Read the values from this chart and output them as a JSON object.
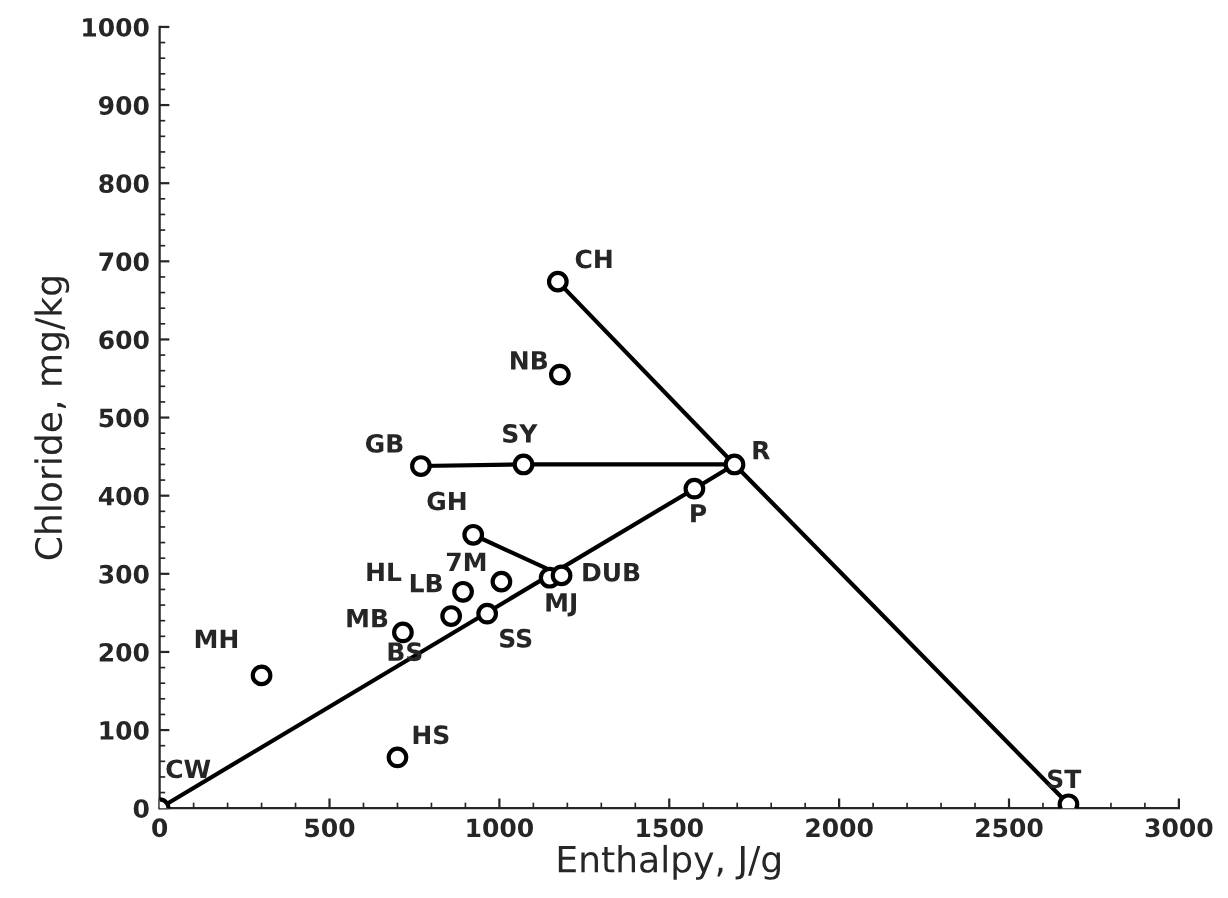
{
  "chart_data": {
    "type": "scatter",
    "xlabel": "Enthalpy, J/g",
    "ylabel": "Chloride, mg/kg",
    "xlim": [
      0,
      3000
    ],
    "ylim": [
      0,
      1000
    ],
    "xticks": [
      0,
      500,
      1000,
      1500,
      2000,
      2500,
      3000
    ],
    "yticks": [
      0,
      100,
      200,
      300,
      400,
      500,
      600,
      700,
      800,
      900,
      1000
    ],
    "grid": false,
    "series": [
      {
        "type": "line",
        "color": "#000000",
        "x": [
          0,
          1574,
          1692
        ],
        "values": [
          0,
          409,
          440
        ]
      },
      {
        "type": "line",
        "color": "#000000",
        "x": [
          1172,
          1692,
          2675
        ],
        "values": [
          674,
          440,
          5
        ]
      },
      {
        "type": "line",
        "color": "#000000",
        "x": [
          1692,
          1071,
          769
        ],
        "values": [
          440,
          440,
          438
        ]
      },
      {
        "type": "line",
        "color": "#000000",
        "x": [
          923,
          1183
        ],
        "values": [
          350,
          298
        ]
      },
      {
        "color": "#000000",
        "marker": "circle",
        "x": [
          0,
          300,
          700,
          716,
          893,
          858,
          1006,
          964,
          923,
          1148,
          1183,
          1574,
          1692,
          1071,
          769,
          1172,
          1178,
          2675
        ],
        "values": [
          0,
          170,
          65,
          225,
          277,
          246,
          290,
          249,
          350,
          295,
          298,
          409,
          440,
          440,
          438,
          674,
          555,
          5
        ]
      }
    ],
    "annotations": [
      {
        "text": "CW",
        "x": 0,
        "y": 0
      },
      {
        "text": "MH",
        "x": 300,
        "y": 170
      },
      {
        "text": "HS",
        "x": 700,
        "y": 65
      },
      {
        "text": "MB",
        "x": 716,
        "y": 225
      },
      {
        "text": "HL",
        "x": 893,
        "y": 277
      },
      {
        "text": "LB",
        "x": 893,
        "y": 277
      },
      {
        "text": "BS",
        "x": 858,
        "y": 246
      },
      {
        "text": "7M",
        "x": 1006,
        "y": 290
      },
      {
        "text": "SS",
        "x": 964,
        "y": 249
      },
      {
        "text": "GH",
        "x": 923,
        "y": 350
      },
      {
        "text": "MJ",
        "x": 1148,
        "y": 295
      },
      {
        "text": "DUB",
        "x": 1183,
        "y": 298
      },
      {
        "text": "P",
        "x": 1574,
        "y": 409
      },
      {
        "text": "R",
        "x": 1692,
        "y": 440
      },
      {
        "text": "SY",
        "x": 1071,
        "y": 440
      },
      {
        "text": "GB",
        "x": 769,
        "y": 438
      },
      {
        "text": "CH",
        "x": 1172,
        "y": 674
      },
      {
        "text": "NB",
        "x": 1178,
        "y": 555
      },
      {
        "text": "ST",
        "x": 2675,
        "y": 5
      }
    ]
  }
}
